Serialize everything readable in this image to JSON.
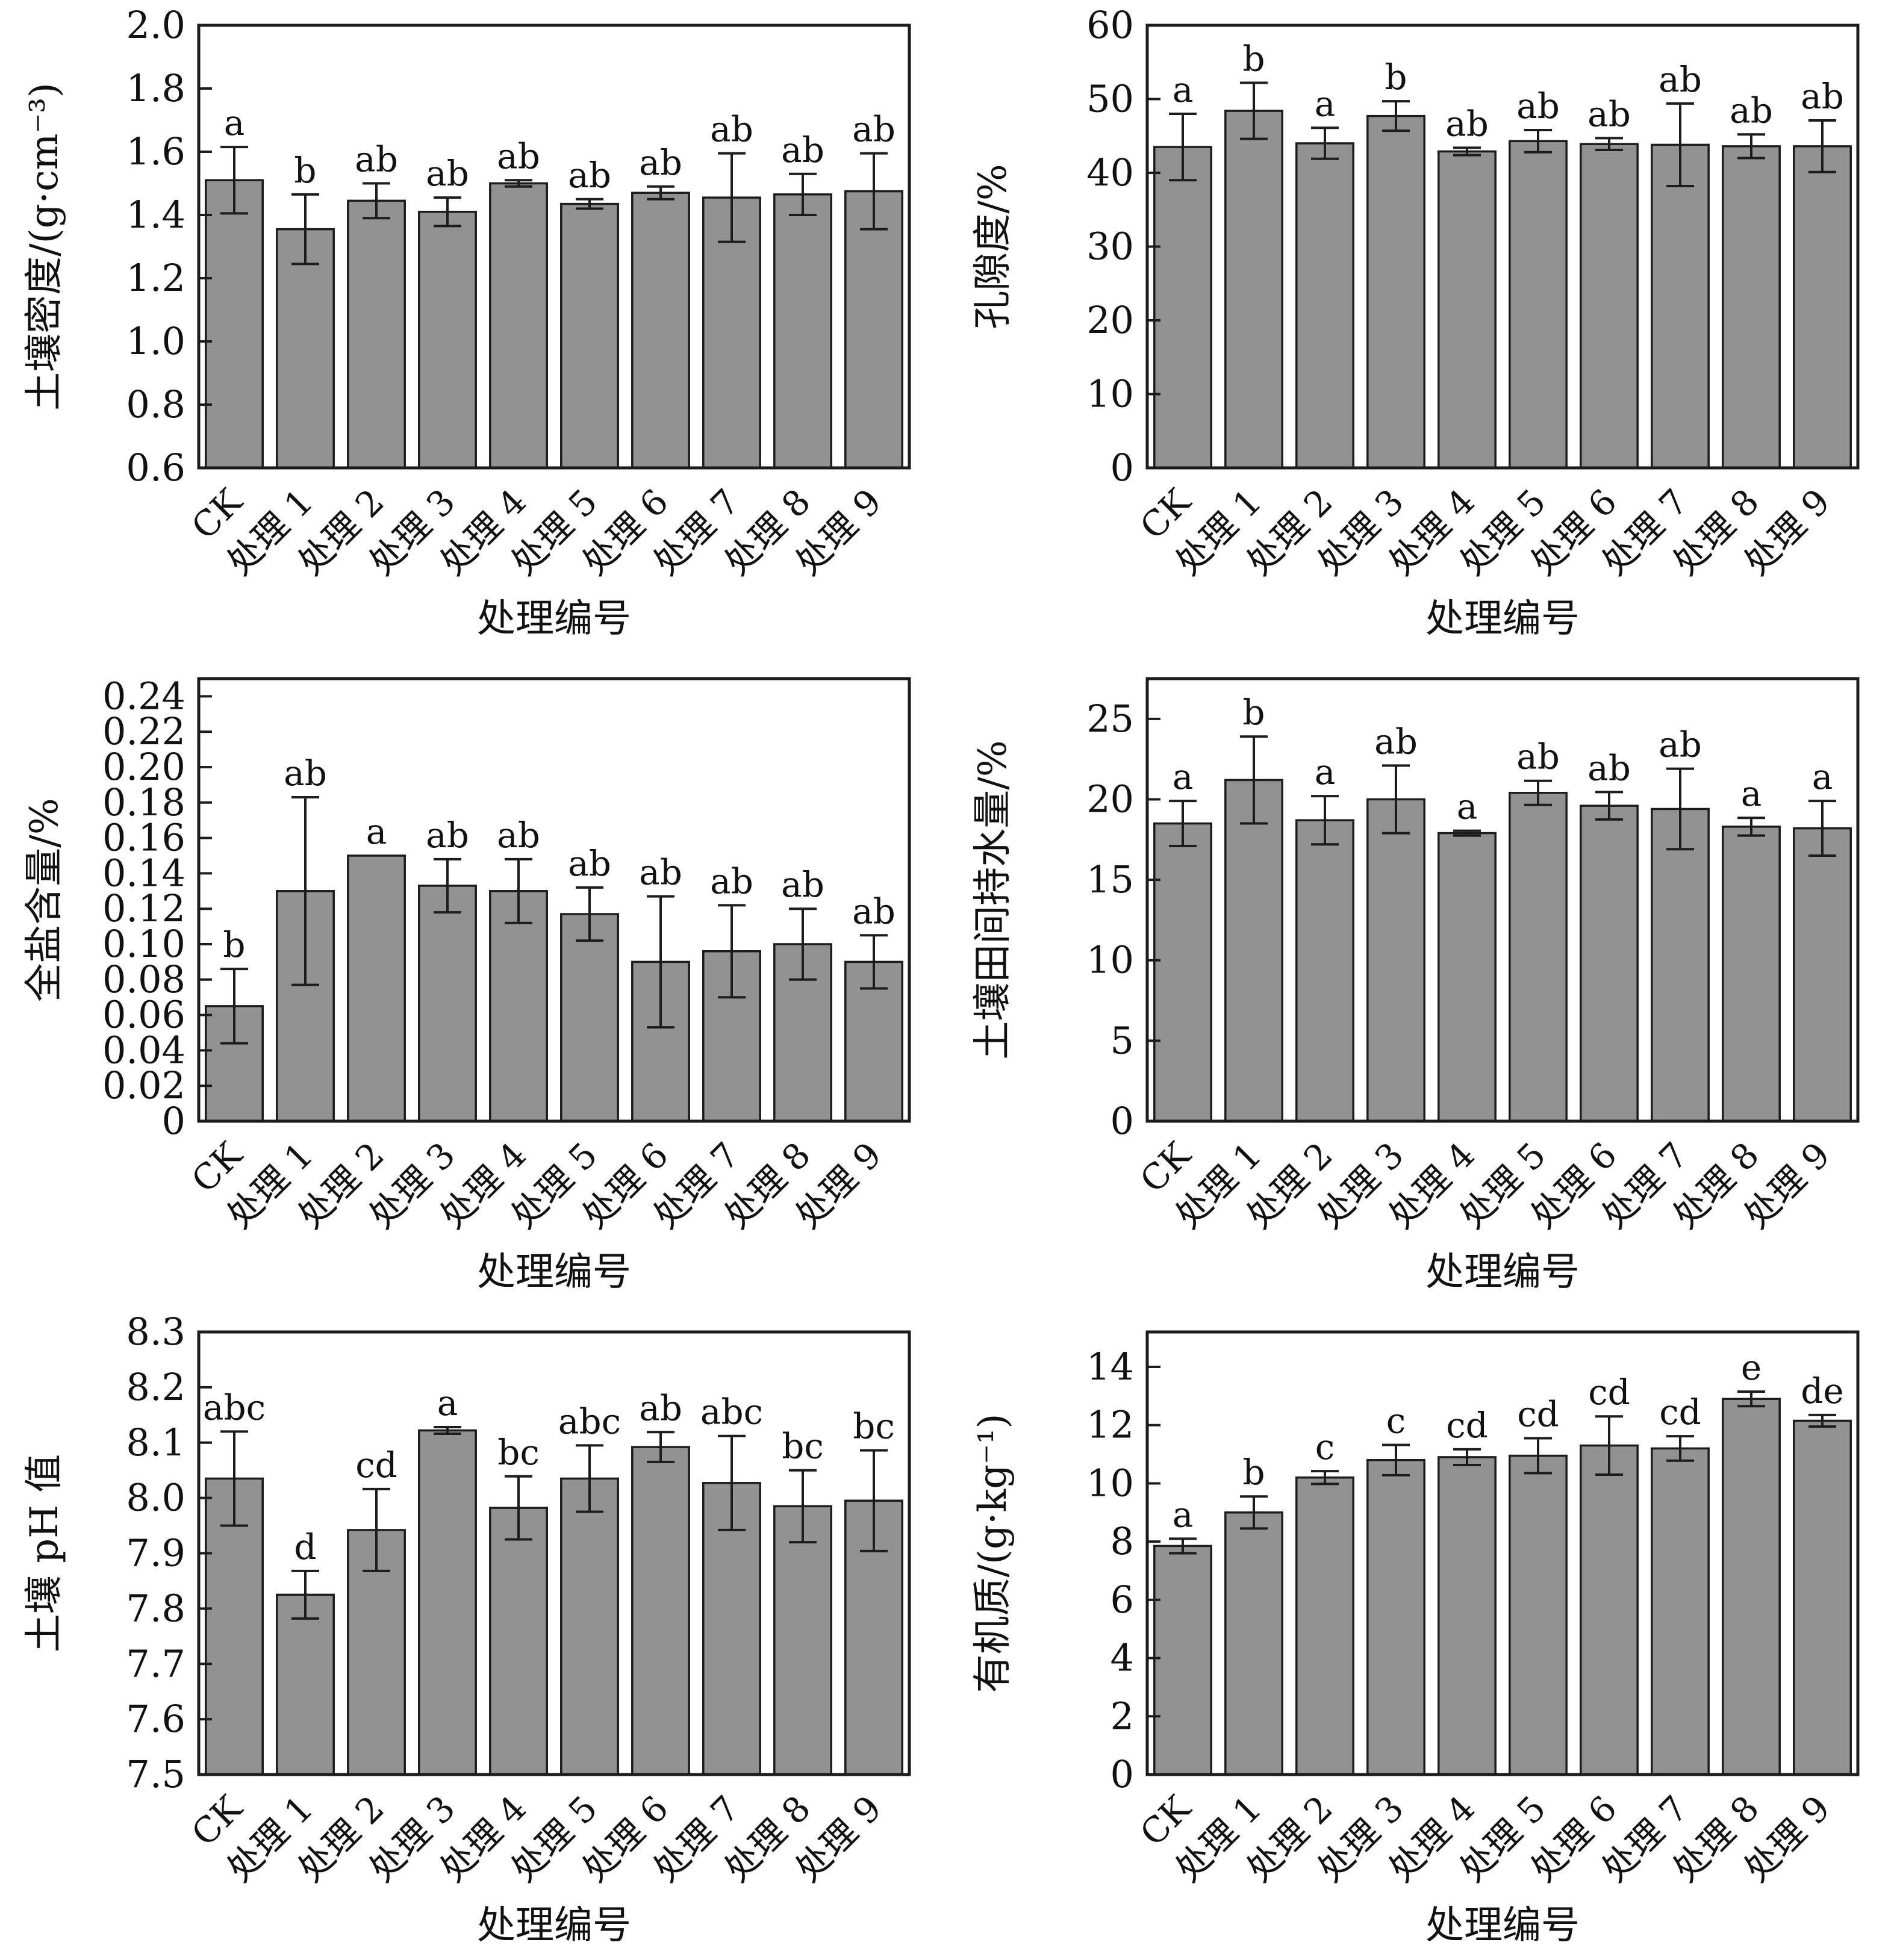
{
  "style": {
    "background": "#ffffff",
    "bar_fill": "#929292",
    "line_color": "#1c1c1c",
    "text_color": "#111111"
  },
  "x_axis_label": "处理编号",
  "categories": [
    "CK",
    "处理 1",
    "处理 2",
    "处理 3",
    "处理 4",
    "处理 5",
    "处理 6",
    "处理 7",
    "处理 8",
    "处理 9"
  ],
  "chart_data": [
    {
      "id": "soil-density",
      "type": "bar",
      "ylabel": "土壤密度/(g·cm⁻³)",
      "xlabel": "处理编号",
      "ylim": [
        0.6,
        2.0
      ],
      "yticks": [
        0.6,
        0.8,
        1.0,
        1.2,
        1.4,
        1.6,
        1.8,
        2.0
      ],
      "ytick_labels": [
        "0.6",
        "0.8",
        "1.0",
        "1.2",
        "1.4",
        "1.6",
        "1.8",
        "2.0"
      ],
      "values": [
        1.51,
        1.355,
        1.445,
        1.41,
        1.5,
        1.435,
        1.47,
        1.455,
        1.465,
        1.475
      ],
      "errors": [
        0.105,
        0.11,
        0.055,
        0.045,
        0.01,
        0.015,
        0.02,
        0.14,
        0.065,
        0.12
      ],
      "letters": [
        "a",
        "b",
        "ab",
        "ab",
        "ab",
        "ab",
        "ab",
        "ab",
        "ab",
        "ab"
      ],
      "grid": false,
      "legend": null
    },
    {
      "id": "porosity",
      "type": "bar",
      "ylabel": "孔隙度/%",
      "xlabel": "处理编号",
      "ylim": [
        0,
        60
      ],
      "yticks": [
        0,
        10,
        20,
        30,
        40,
        50,
        60
      ],
      "ytick_labels": [
        "0",
        "10",
        "20",
        "30",
        "40",
        "50",
        "60"
      ],
      "values": [
        43.5,
        48.4,
        44.0,
        47.7,
        42.9,
        44.3,
        43.9,
        43.8,
        43.6,
        43.6
      ],
      "errors": [
        4.5,
        3.8,
        2.1,
        2.0,
        0.5,
        1.5,
        0.8,
        5.6,
        1.6,
        3.5
      ],
      "letters": [
        "a",
        "b",
        "a",
        "b",
        "ab",
        "ab",
        "ab",
        "ab",
        "ab",
        "ab"
      ],
      "grid": false,
      "legend": null
    },
    {
      "id": "salt-content",
      "type": "bar",
      "ylabel": "全盐含量/%",
      "xlabel": "处理编号",
      "ylim": [
        0,
        0.25
      ],
      "yticks": [
        0,
        0.02,
        0.04,
        0.06,
        0.08,
        0.1,
        0.12,
        0.14,
        0.16,
        0.18,
        0.2,
        0.22,
        0.24
      ],
      "ytick_labels": [
        "0",
        "0.02",
        "0.04",
        "0.06",
        "0.08",
        "0.10",
        "0.12",
        "0.14",
        "0.16",
        "0.18",
        "0.20",
        "0.22",
        "0.24"
      ],
      "values": [
        0.065,
        0.13,
        0.15,
        0.133,
        0.13,
        0.117,
        0.09,
        0.096,
        0.1,
        0.09
      ],
      "errors": [
        0.021,
        0.053,
        0,
        0.015,
        0.018,
        0.015,
        0.037,
        0.026,
        0.02,
        0.015
      ],
      "letters": [
        "b",
        "ab",
        "a",
        "ab",
        "ab",
        "ab",
        "ab",
        "ab",
        "ab",
        "ab"
      ],
      "grid": false,
      "legend": null
    },
    {
      "id": "field-water-capacity",
      "type": "bar",
      "ylabel": "土壤田间持水量/%",
      "xlabel": "处理编号",
      "ylim": [
        0,
        27.5
      ],
      "yticks": [
        0,
        5,
        10,
        15,
        20,
        25
      ],
      "ytick_labels": [
        "0",
        "5",
        "10",
        "15",
        "20",
        "25"
      ],
      "values": [
        18.5,
        21.2,
        18.7,
        20.0,
        17.9,
        20.4,
        19.6,
        19.4,
        18.3,
        18.2
      ],
      "errors": [
        1.4,
        2.7,
        1.5,
        2.1,
        0.15,
        0.75,
        0.85,
        2.5,
        0.55,
        1.7
      ],
      "letters": [
        "a",
        "b",
        "a",
        "ab",
        "a",
        "ab",
        "ab",
        "ab",
        "a",
        "a"
      ],
      "grid": false,
      "legend": null
    },
    {
      "id": "soil-ph",
      "type": "bar",
      "ylabel": "土壤 pH 值",
      "xlabel": "处理编号",
      "ylim": [
        7.5,
        8.3
      ],
      "yticks": [
        7.5,
        7.6,
        7.7,
        7.8,
        7.9,
        8.0,
        8.1,
        8.2,
        8.3
      ],
      "ytick_labels": [
        "7.5",
        "7.6",
        "7.7",
        "7.8",
        "7.9",
        "8.0",
        "8.1",
        "8.2",
        "8.3"
      ],
      "values": [
        8.035,
        7.825,
        7.942,
        8.122,
        7.982,
        8.035,
        8.092,
        8.027,
        7.985,
        7.995
      ],
      "errors": [
        0.085,
        0.043,
        0.074,
        0.006,
        0.057,
        0.06,
        0.027,
        0.085,
        0.065,
        0.091
      ],
      "letters": [
        "abc",
        "d",
        "cd",
        "a",
        "bc",
        "abc",
        "ab",
        "abc",
        "bc",
        "bc"
      ],
      "grid": false,
      "legend": null
    },
    {
      "id": "organic-matter",
      "type": "bar",
      "ylabel": "有机质/(g·kg⁻¹)",
      "xlabel": "处理编号",
      "ylim": [
        0,
        15.2
      ],
      "yticks": [
        0,
        2,
        4,
        6,
        8,
        10,
        12,
        14
      ],
      "ytick_labels": [
        "0",
        "2",
        "4",
        "6",
        "8",
        "10",
        "12",
        "14"
      ],
      "values": [
        7.85,
        9.0,
        10.2,
        10.8,
        10.9,
        10.95,
        11.3,
        11.2,
        12.9,
        12.15
      ],
      "errors": [
        0.25,
        0.55,
        0.22,
        0.52,
        0.27,
        0.6,
        1.0,
        0.42,
        0.25,
        0.2
      ],
      "letters": [
        "a",
        "b",
        "c",
        "c",
        "cd",
        "cd",
        "cd",
        "cd",
        "e",
        "de"
      ],
      "grid": false,
      "legend": null
    }
  ]
}
